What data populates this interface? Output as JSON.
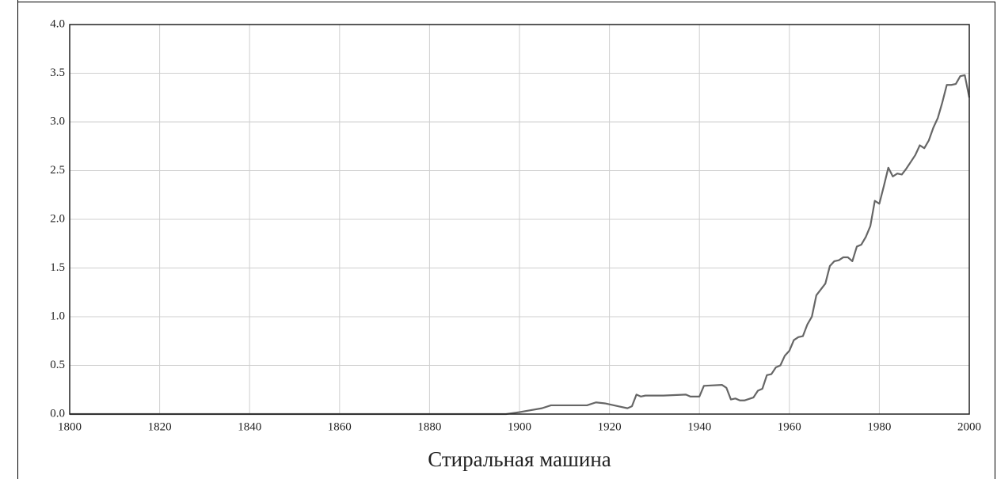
{
  "chart_data": {
    "type": "line",
    "caption": "Стиральная машина",
    "x": [
      1800,
      1897,
      1900,
      1905,
      1907,
      1915,
      1917,
      1919,
      1922,
      1924,
      1925,
      1926,
      1927,
      1928,
      1932,
      1937,
      1938,
      1940,
      1941,
      1945,
      1946,
      1947,
      1948,
      1949,
      1950,
      1952,
      1953,
      1954,
      1955,
      1956,
      1957,
      1958,
      1959,
      1960,
      1961,
      1962,
      1963,
      1964,
      1965,
      1966,
      1967,
      1968,
      1969,
      1970,
      1971,
      1972,
      1973,
      1974,
      1975,
      1976,
      1977,
      1978,
      1979,
      1980,
      1981,
      1982,
      1983,
      1984,
      1985,
      1986,
      1987,
      1988,
      1989,
      1990,
      1991,
      1992,
      1993,
      1994,
      1995,
      1996,
      1997,
      1998,
      1999,
      2000
    ],
    "series": [
      {
        "color": "#666666",
        "values": [
          0,
          0,
          0.02,
          0.06,
          0.09,
          0.09,
          0.12,
          0.11,
          0.08,
          0.06,
          0.08,
          0.2,
          0.18,
          0.19,
          0.19,
          0.2,
          0.18,
          0.18,
          0.29,
          0.3,
          0.27,
          0.15,
          0.16,
          0.14,
          0.14,
          0.17,
          0.24,
          0.26,
          0.4,
          0.41,
          0.48,
          0.5,
          0.6,
          0.65,
          0.76,
          0.79,
          0.8,
          0.92,
          1.0,
          1.22,
          1.28,
          1.34,
          1.52,
          1.57,
          1.58,
          1.61,
          1.61,
          1.57,
          1.72,
          1.74,
          1.82,
          1.93,
          2.19,
          2.16,
          2.34,
          2.53,
          2.44,
          2.47,
          2.46,
          2.52,
          2.59,
          2.66,
          2.76,
          2.73,
          2.81,
          2.94,
          3.04,
          3.2,
          3.38,
          3.38,
          3.39,
          3.47,
          3.48,
          3.25
        ]
      }
    ],
    "xlim": [
      1800,
      2000
    ],
    "xticks": [
      1800,
      1820,
      1840,
      1860,
      1880,
      1900,
      1920,
      1940,
      1960,
      1980,
      2000
    ],
    "ylim": [
      0,
      4
    ],
    "yticks": [
      {
        "value": 0,
        "label": "0.0"
      },
      0.5,
      {
        "value": 1,
        "label": "1.0"
      },
      1.5,
      {
        "value": 2,
        "label": "2.0"
      },
      2.5,
      {
        "value": 3,
        "label": "3.0"
      },
      3.5,
      {
        "value": 4,
        "label": "4.0"
      }
    ],
    "grid": true
  }
}
